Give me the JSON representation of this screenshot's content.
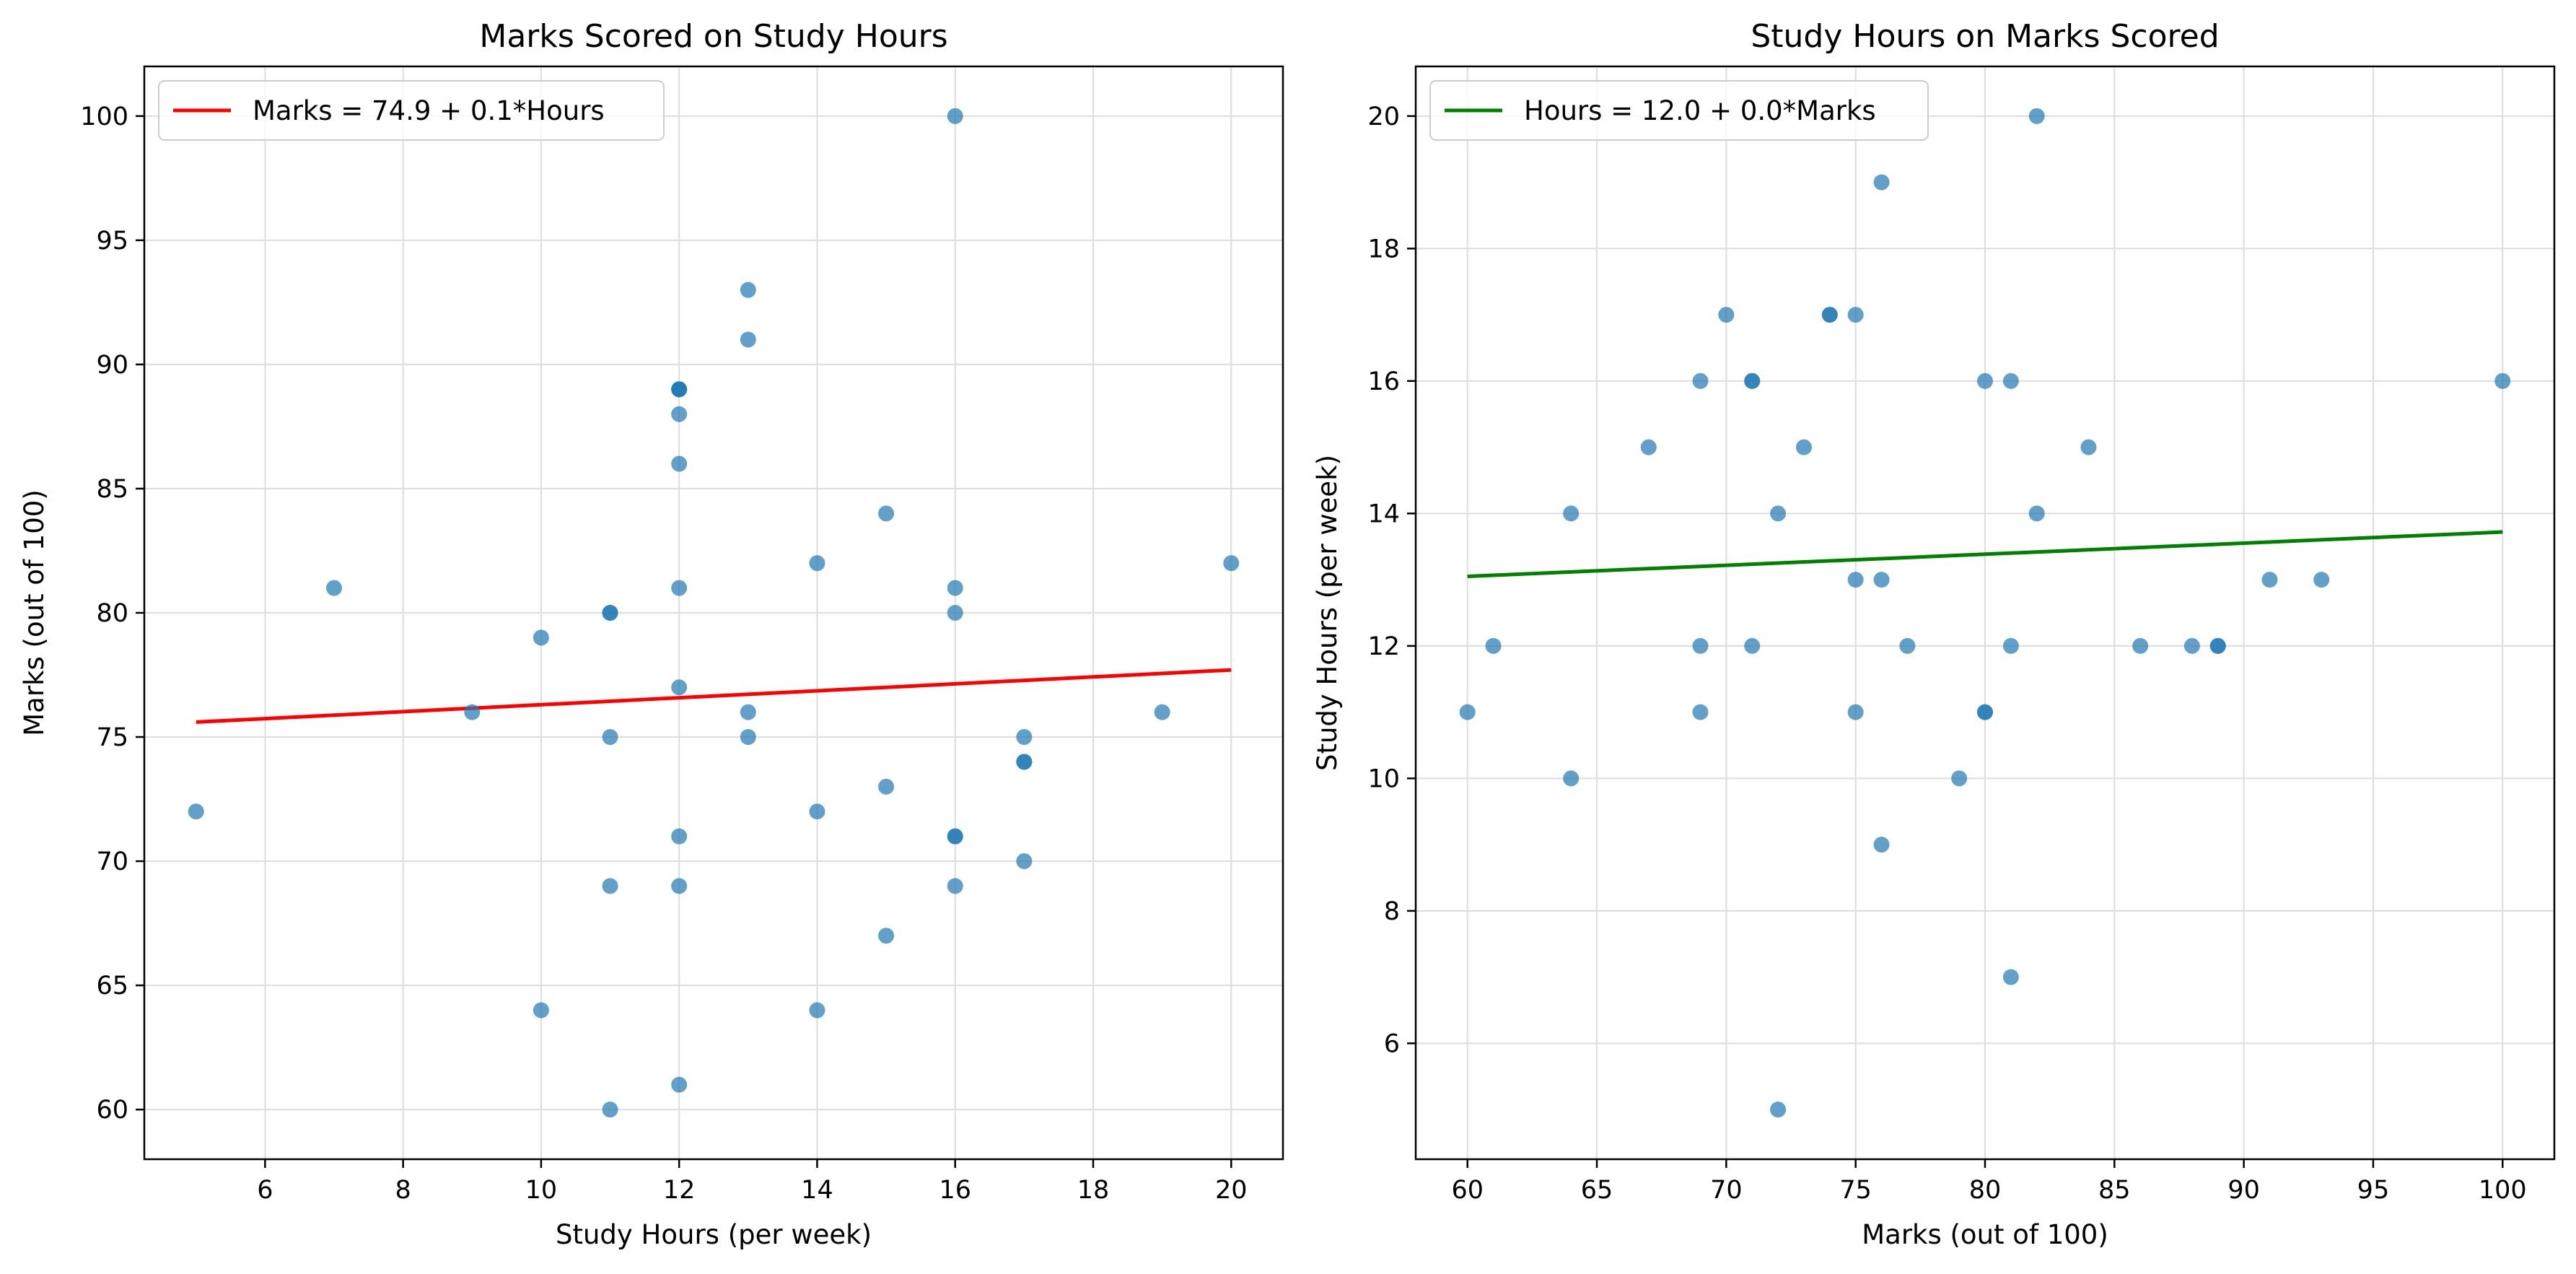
{
  "chart_data": [
    {
      "type": "scatter",
      "title": "Marks Scored on Study Hours",
      "xlabel": "Study Hours (per week)",
      "ylabel": "Marks (out of 100)",
      "xlim": [
        4.25,
        20.75
      ],
      "ylim": [
        58,
        102
      ],
      "xticks": [
        6,
        8,
        10,
        12,
        14,
        16,
        18,
        20
      ],
      "yticks": [
        60,
        65,
        70,
        75,
        80,
        85,
        90,
        95,
        100
      ],
      "grid": true,
      "legend_position": "top-left",
      "point_color": "#1f77b4",
      "line_color": "#ff0000",
      "points": {
        "x": [
          5,
          7,
          9,
          10,
          10,
          11,
          11,
          11,
          11,
          11,
          12,
          12,
          12,
          12,
          12,
          12,
          12,
          12,
          12,
          12,
          13,
          13,
          13,
          13,
          14,
          14,
          14,
          15,
          15,
          15,
          16,
          16,
          16,
          16,
          16,
          16,
          17,
          17,
          17,
          17,
          19,
          20
        ],
        "y": [
          72,
          81,
          76,
          79,
          64,
          80,
          80,
          75,
          69,
          60,
          89,
          89,
          88,
          86,
          81,
          77,
          71,
          69,
          61,
          89,
          93,
          91,
          76,
          75,
          82,
          72,
          64,
          84,
          73,
          67,
          100,
          81,
          80,
          71,
          71,
          69,
          75,
          74,
          74,
          70,
          76,
          82
        ]
      },
      "fit_line": {
        "name": "Marks = 74.9 + 0.1*Hours",
        "x": [
          5,
          20
        ],
        "y": [
          75.6,
          77.7
        ]
      }
    },
    {
      "type": "scatter",
      "title": "Study Hours on Marks Scored",
      "xlabel": "Marks (out of 100)",
      "ylabel": "Study Hours (per week)",
      "xlim": [
        58,
        102
      ],
      "ylim": [
        4.25,
        20.75
      ],
      "xticks": [
        60,
        65,
        70,
        75,
        80,
        85,
        90,
        95,
        100
      ],
      "yticks": [
        6,
        8,
        10,
        12,
        14,
        16,
        18,
        20
      ],
      "grid": true,
      "legend_position": "top-left",
      "point_color": "#1f77b4",
      "line_color": "#008000",
      "points": {
        "x": [
          60,
          61,
          64,
          64,
          67,
          69,
          69,
          69,
          70,
          71,
          71,
          71,
          72,
          72,
          73,
          74,
          74,
          75,
          75,
          75,
          76,
          76,
          76,
          77,
          79,
          80,
          80,
          80,
          81,
          81,
          81,
          82,
          82,
          84,
          86,
          88,
          89,
          89,
          91,
          93,
          100
        ],
        "y": [
          11,
          12,
          14,
          10,
          15,
          16,
          12,
          11,
          17,
          16,
          16,
          12,
          14,
          5,
          15,
          17,
          17,
          17,
          13,
          11,
          19,
          13,
          9,
          12,
          10,
          16,
          11,
          11,
          16,
          12,
          7,
          20,
          14,
          15,
          12,
          12,
          12,
          12,
          13,
          13,
          16
        ]
      },
      "fit_line": {
        "name": "Hours = 12.0 + 0.0*Marks",
        "x": [
          60,
          100
        ],
        "y": [
          13.05,
          13.72
        ]
      }
    }
  ]
}
